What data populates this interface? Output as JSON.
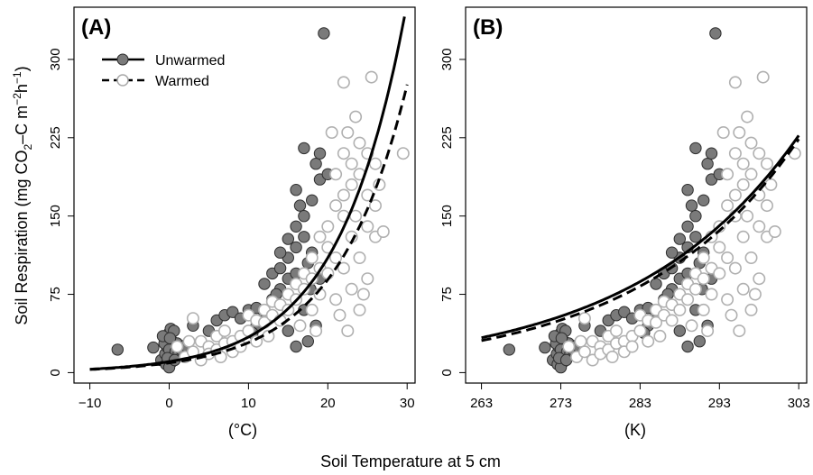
{
  "figure": {
    "ylabel": "Soil Respiration (mg CO2–C m−2h−1)",
    "xlabel": "Soil Temperature at 5 cm"
  },
  "chart_data": [
    {
      "type": "scatter",
      "panel_label": "(A)",
      "xlabel": "(°C)",
      "ylabel": "Soil Respiration (mg CO2–C m−2h−1)",
      "xlim": [
        -12,
        31
      ],
      "ylim": [
        -10,
        350
      ],
      "xticks": [
        -10,
        0,
        10,
        20,
        30
      ],
      "xtick_labels": [
        "−10",
        "0",
        "10",
        "20",
        "30"
      ],
      "yticks": [
        0,
        75,
        150,
        225,
        300
      ],
      "ytick_labels": [
        "0",
        "75",
        "150",
        "225",
        "300"
      ],
      "grid": false,
      "legend": {
        "position": "top-left",
        "entries": [
          "Unwarmed",
          "Warmed"
        ]
      },
      "series": [
        {
          "name": "Unwarmed",
          "kind": "points",
          "marker": "filled-circle",
          "color": "#7a7a7a",
          "points": [
            [
              -6.5,
              22
            ],
            [
              -2,
              24
            ],
            [
              -1,
              12
            ],
            [
              -0.5,
              18
            ],
            [
              -0.3,
              25
            ],
            [
              -0.2,
              32
            ],
            [
              0,
              38
            ],
            [
              0.2,
              42
            ],
            [
              0.4,
              30
            ],
            [
              -0.6,
              28
            ],
            [
              0,
              22
            ],
            [
              0.5,
              15
            ],
            [
              -0.4,
              8
            ],
            [
              0.8,
              20
            ],
            [
              1.2,
              18
            ],
            [
              -0.8,
              35
            ],
            [
              0.3,
              10
            ],
            [
              1,
              28
            ],
            [
              0.6,
              40
            ],
            [
              0,
              5
            ],
            [
              -0.2,
              14
            ],
            [
              1.5,
              22
            ],
            [
              2,
              26
            ],
            [
              0.1,
              33
            ],
            [
              0.7,
              12
            ],
            [
              3,
              45
            ],
            [
              5,
              40
            ],
            [
              6,
              50
            ],
            [
              7,
              55
            ],
            [
              8,
              58
            ],
            [
              9,
              52
            ],
            [
              10,
              60
            ],
            [
              11,
              45
            ],
            [
              12,
              55
            ],
            [
              13,
              70
            ],
            [
              12,
              85
            ],
            [
              13,
              95
            ],
            [
              14,
              100
            ],
            [
              14,
              80
            ],
            [
              15,
              90
            ],
            [
              15,
              110
            ],
            [
              16,
              120
            ],
            [
              16,
              95
            ],
            [
              16,
              140
            ],
            [
              16.5,
              160
            ],
            [
              16,
              175
            ],
            [
              17,
              130
            ],
            [
              17,
              150
            ],
            [
              17,
              215
            ],
            [
              17.5,
              105
            ],
            [
              17.8,
              80
            ],
            [
              17,
              60
            ],
            [
              15,
              40
            ],
            [
              16,
              25
            ],
            [
              18,
              115
            ],
            [
              18,
              165
            ],
            [
              18.5,
              200
            ],
            [
              19,
              210
            ],
            [
              19,
              185
            ],
            [
              19.5,
              325
            ],
            [
              19,
              90
            ],
            [
              18.5,
              45
            ],
            [
              20,
              190
            ],
            [
              19,
              130
            ],
            [
              20,
              120
            ],
            [
              10.5,
              38
            ],
            [
              11,
              62
            ],
            [
              12,
              50
            ],
            [
              14,
              115
            ],
            [
              15,
              128
            ],
            [
              13.5,
              75
            ],
            [
              17.5,
              30
            ]
          ]
        },
        {
          "name": "Warmed",
          "kind": "points",
          "marker": "open-circle",
          "color": "#b0b0b0",
          "points": [
            [
              2,
              15
            ],
            [
              3,
              20
            ],
            [
              3,
              52
            ],
            [
              4,
              12
            ],
            [
              4,
              30
            ],
            [
              5,
              25
            ],
            [
              5,
              18
            ],
            [
              6,
              22
            ],
            [
              6,
              35
            ],
            [
              7,
              28
            ],
            [
              7,
              40
            ],
            [
              8,
              30
            ],
            [
              8,
              20
            ],
            [
              9,
              35
            ],
            [
              9,
              25
            ],
            [
              10,
              40
            ],
            [
              10,
              55
            ],
            [
              11,
              50
            ],
            [
              11,
              30
            ],
            [
              12,
              48
            ],
            [
              12,
              60
            ],
            [
              13,
              55
            ],
            [
              13,
              68
            ],
            [
              14,
              65
            ],
            [
              14,
              50
            ],
            [
              15,
              75
            ],
            [
              15,
              60
            ],
            [
              16,
              70
            ],
            [
              16,
              85
            ],
            [
              17,
              80
            ],
            [
              17,
              95
            ],
            [
              18,
              90
            ],
            [
              18,
              110
            ],
            [
              18,
              60
            ],
            [
              19,
              100
            ],
            [
              19,
              130
            ],
            [
              19,
              75
            ],
            [
              20,
              120
            ],
            [
              20,
              140
            ],
            [
              20,
              95
            ],
            [
              21,
              110
            ],
            [
              21,
              160
            ],
            [
              21,
              190
            ],
            [
              21,
              70
            ],
            [
              22,
              150
            ],
            [
              22,
              170
            ],
            [
              22,
              210
            ],
            [
              22,
              100
            ],
            [
              22,
              278
            ],
            [
              22.5,
              230
            ],
            [
              23,
              180
            ],
            [
              23,
              200
            ],
            [
              23,
              130
            ],
            [
              23,
              80
            ],
            [
              23.5,
              245
            ],
            [
              23.5,
              150
            ],
            [
              24,
              220
            ],
            [
              24,
              190
            ],
            [
              24,
              110
            ],
            [
              24,
              60
            ],
            [
              25,
              210
            ],
            [
              25,
              170
            ],
            [
              25,
              140
            ],
            [
              25,
              90
            ],
            [
              25.5,
              283
            ],
            [
              26,
              200
            ],
            [
              26,
              160
            ],
            [
              26,
              130
            ],
            [
              26.5,
              180
            ],
            [
              27,
              135
            ],
            [
              29.5,
              210
            ],
            [
              20.5,
              230
            ],
            [
              21.5,
              55
            ],
            [
              22.5,
              40
            ],
            [
              24.5,
              75
            ],
            [
              1,
              25
            ],
            [
              2.5,
              30
            ],
            [
              6.5,
              15
            ],
            [
              12.5,
              35
            ],
            [
              16.5,
              45
            ],
            [
              18.5,
              40
            ]
          ]
        },
        {
          "name": "Unwarmed fit",
          "kind": "curve",
          "style": "solid",
          "color": "#000000",
          "model": "exponential",
          "a": 10.6,
          "b": 0.117,
          "x_range": [
            -10,
            30
          ]
        },
        {
          "name": "Warmed fit",
          "kind": "curve",
          "style": "dashed",
          "color": "#000000",
          "model": "exponential",
          "a": 9.3,
          "b": 0.113,
          "x_range": [
            -10,
            30
          ]
        }
      ]
    },
    {
      "type": "scatter",
      "panel_label": "(B)",
      "xlabel": "(K)",
      "ylabel": "",
      "xlim": [
        261,
        304
      ],
      "ylim": [
        -10,
        350
      ],
      "xticks": [
        263,
        273,
        283,
        293,
        303
      ],
      "xtick_labels": [
        "263",
        "273",
        "283",
        "293",
        "303"
      ],
      "yticks": [
        0,
        75,
        150,
        225,
        300
      ],
      "ytick_labels": [
        "0",
        "75",
        "150",
        "225",
        "300"
      ],
      "grid": false,
      "x_offset_from_panel_A": 273,
      "series": [
        {
          "name": "Unwarmed",
          "kind": "points",
          "marker": "filled-circle",
          "color": "#7a7a7a",
          "points_from": "A.Unwarmed"
        },
        {
          "name": "Warmed",
          "kind": "points",
          "marker": "open-circle",
          "color": "#b0b0b0",
          "points_from": "A.Warmed"
        },
        {
          "name": "Unwarmed fit",
          "kind": "curve",
          "style": "solid",
          "color": "#000000",
          "model": "exponential",
          "a": 0.000113,
          "b": 0.0479,
          "x_range": [
            263,
            303
          ]
        },
        {
          "name": "Warmed fit",
          "kind": "curve",
          "style": "dashed",
          "color": "#000000",
          "model": "exponential",
          "a": 6.45e-05,
          "b": 0.0497,
          "x_range": [
            263,
            303
          ]
        }
      ]
    }
  ]
}
